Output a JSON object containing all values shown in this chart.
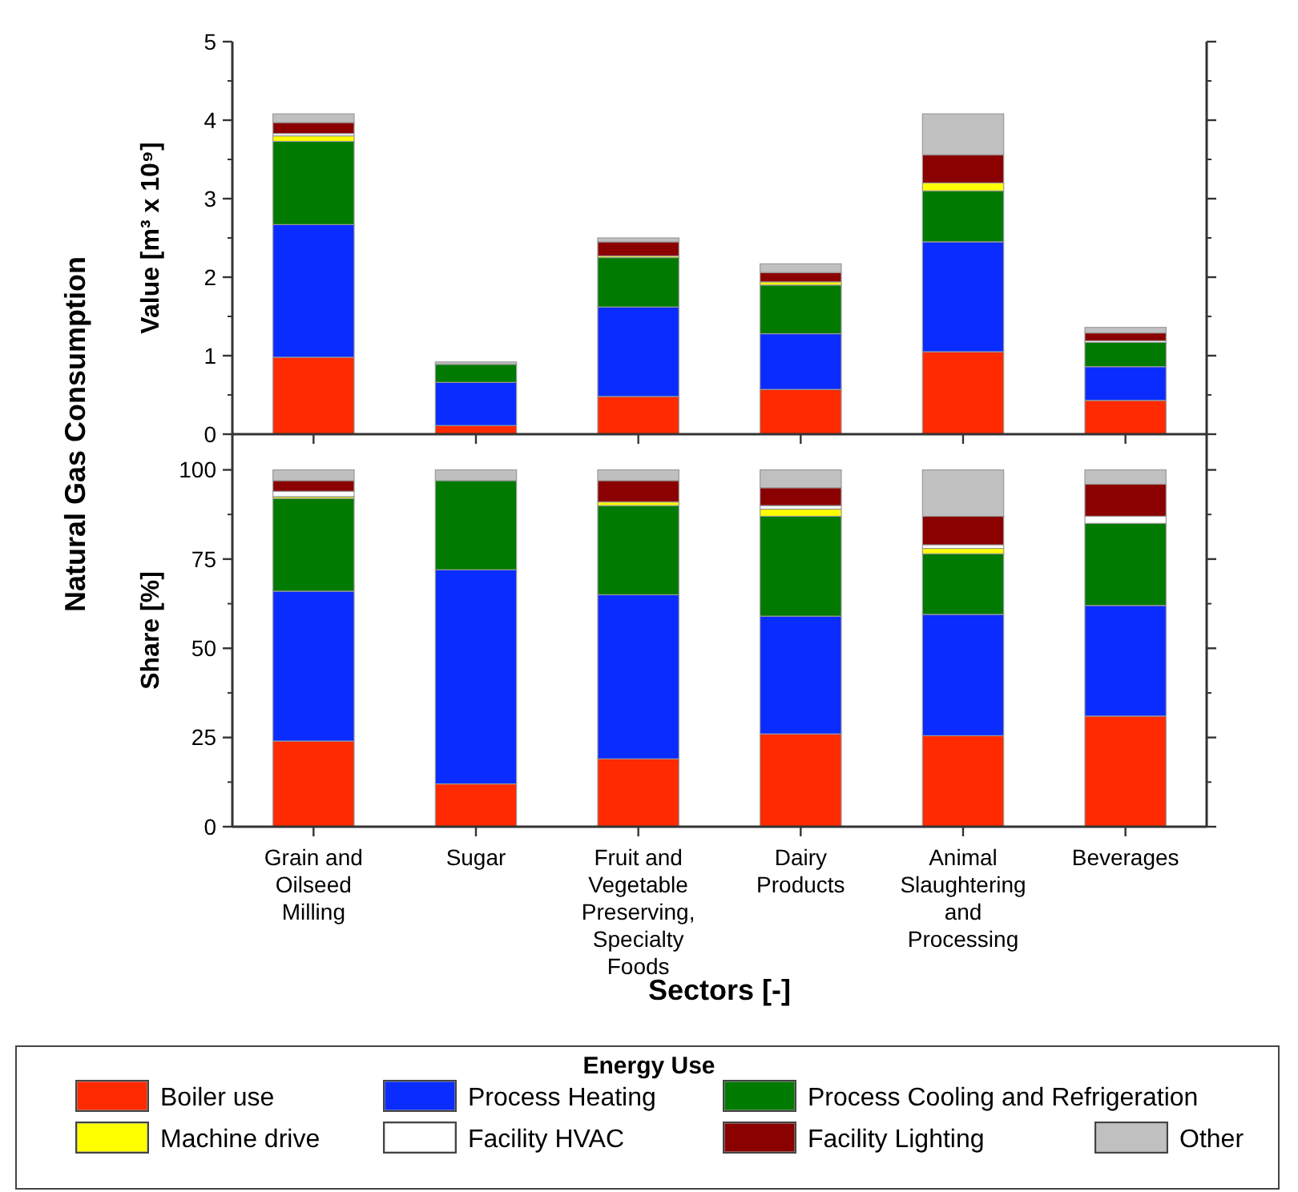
{
  "chart_data": [
    {
      "type": "bar",
      "stacked": true,
      "ylabel": "Value [m³ x 10⁹]",
      "annotations": [
        "Natural Gas Consumption"
      ],
      "categories": [
        null,
        null,
        null,
        null,
        null,
        null
      ],
      "ylim": [
        0,
        5
      ],
      "yticks": [
        0,
        1,
        2,
        3,
        4,
        5
      ],
      "tick_labels": "y",
      "legend": false,
      "grid": false,
      "series": [
        {
          "color": "#ff2a00",
          "values": [
            0.98,
            0.11,
            0.48,
            0.57,
            1.05,
            0.43
          ]
        },
        {
          "color": "#0a2cff",
          "values": [
            1.69,
            0.55,
            1.14,
            0.71,
            1.4,
            0.43
          ]
        },
        {
          "color": "#007a00",
          "values": [
            1.06,
            0.23,
            0.63,
            0.62,
            0.65,
            0.31
          ]
        },
        {
          "color": "#ffff00",
          "values": [
            0.07,
            0,
            0.02,
            0.04,
            0.1,
            0
          ]
        },
        {
          "color": "#ffffff",
          "values": [
            0.03,
            0,
            0,
            0,
            0,
            0.02
          ]
        },
        {
          "color": "#8b0000",
          "values": [
            0.14,
            0,
            0.18,
            0.12,
            0.36,
            0.1
          ]
        },
        {
          "color": "#c0c0c0",
          "values": [
            0.11,
            0.03,
            0.05,
            0.11,
            0.52,
            0.07
          ]
        }
      ]
    },
    {
      "type": "bar",
      "stacked": true,
      "ylabel": "Share [%]",
      "xlabel": "Sectors [-]",
      "legend_title": "Energy Use",
      "legend": "bottom",
      "grid": false,
      "categories": [
        "Grain and Oilseed Milling",
        "Sugar",
        "Fruit and Vegetable Preserving, Specialty Foods",
        "Dairy Products",
        "Animal Slaughtering and Processing",
        "Beverages"
      ],
      "ylim": [
        0,
        110
      ],
      "yticks": [
        0,
        25,
        50,
        75,
        100
      ],
      "series": [
        {
          "name": "Boiler use",
          "color": "#ff2a00",
          "values": [
            24,
            12,
            19,
            26,
            25.5,
            31
          ]
        },
        {
          "name": "Process Heating",
          "color": "#0a2cff",
          "values": [
            42,
            60,
            46,
            33,
            34,
            31
          ]
        },
        {
          "name": "Process Cooling and Refrigeration",
          "color": "#007a00",
          "values": [
            26,
            25,
            25,
            28,
            17,
            23
          ]
        },
        {
          "name": "Machine drive",
          "color": "#ffff00",
          "values": [
            0.5,
            0,
            1,
            2,
            1.5,
            0
          ]
        },
        {
          "name": "Facility HVAC",
          "color": "#ffffff",
          "values": [
            1.5,
            0,
            0,
            1,
            1,
            2
          ]
        },
        {
          "name": "Facility Lighting",
          "color": "#8b0000",
          "values": [
            3,
            0,
            6,
            5,
            8,
            9
          ]
        },
        {
          "name": "Other",
          "color": "#c0c0c0",
          "values": [
            3,
            3,
            3,
            5,
            13,
            4
          ]
        }
      ]
    }
  ]
}
